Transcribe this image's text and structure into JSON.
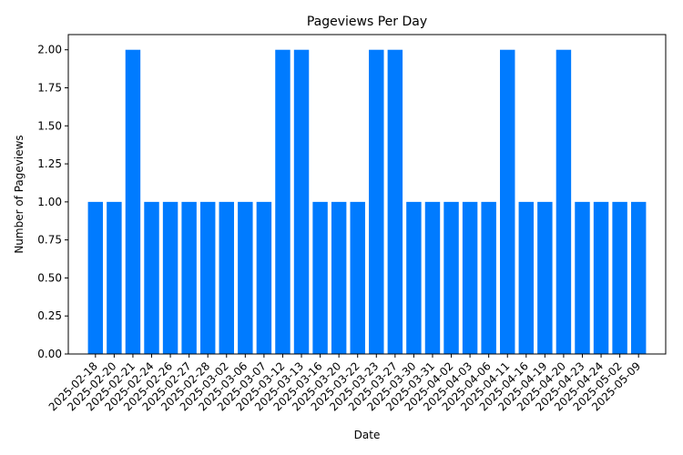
{
  "chart_data": {
    "type": "bar",
    "title": "Pageviews Per Day",
    "xlabel": "Date",
    "ylabel": "Number of Pageviews",
    "ylim": [
      0,
      2.1
    ],
    "yticks": [
      "0.00",
      "0.25",
      "0.50",
      "0.75",
      "1.00",
      "1.25",
      "1.50",
      "1.75",
      "2.00"
    ],
    "grid": false,
    "legend": "none",
    "bar_color": "#007bff",
    "categories": [
      "2025-02-18",
      "2025-02-20",
      "2025-02-21",
      "2025-02-24",
      "2025-02-26",
      "2025-02-27",
      "2025-02-28",
      "2025-03-02",
      "2025-03-06",
      "2025-03-07",
      "2025-03-12",
      "2025-03-13",
      "2025-03-16",
      "2025-03-20",
      "2025-03-22",
      "2025-03-23",
      "2025-03-27",
      "2025-03-30",
      "2025-03-31",
      "2025-04-02",
      "2025-04-03",
      "2025-04-06",
      "2025-04-11",
      "2025-04-16",
      "2025-04-19",
      "2025-04-20",
      "2025-04-23",
      "2025-04-24",
      "2025-05-02",
      "2025-05-09"
    ],
    "values": [
      1,
      1,
      2,
      1,
      1,
      1,
      1,
      1,
      1,
      1,
      2,
      2,
      1,
      1,
      1,
      2,
      2,
      1,
      1,
      1,
      1,
      1,
      2,
      1,
      1,
      2,
      1,
      1,
      1,
      1
    ]
  }
}
